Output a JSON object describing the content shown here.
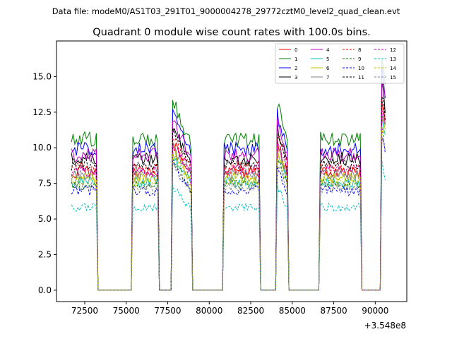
{
  "figure_header": "Data file: modeM0/AS1T03_291T01_9000004278_29772cztM0_level2_quad_clean.evt",
  "chart_data": {
    "type": "line",
    "title": "Quadrant 0 module wise count rates with 100.0s bins.",
    "xlabel": "",
    "ylabel": "",
    "x_offset_label": "+3.548e8",
    "xlim": [
      70800,
      91900
    ],
    "ylim": [
      -0.8,
      17.5
    ],
    "xticks": [
      72500,
      75000,
      77500,
      80000,
      82500,
      85000,
      87500,
      90000
    ],
    "xtick_labels": [
      "72500",
      "75000",
      "77500",
      "80000",
      "82500",
      "85000",
      "87500",
      "90000"
    ],
    "yticks": [
      0.0,
      2.5,
      5.0,
      7.5,
      10.0,
      12.5,
      15.0
    ],
    "ytick_labels": [
      "0.0",
      "2.5",
      "5.0",
      "7.5",
      "10.0",
      "12.5",
      "15.0"
    ],
    "grid": false,
    "legend_position": "top-right",
    "legend_columns": 4,
    "x_start": 71700,
    "x_step": 100,
    "segments": [
      {
        "from": 71700,
        "to": 73200,
        "kind": "flat"
      },
      {
        "from": 75400,
        "to": 76900,
        "kind": "flat"
      },
      {
        "from": 77800,
        "to": 78900,
        "kind": "decay"
      },
      {
        "from": 80900,
        "to": 83000,
        "kind": "flat"
      },
      {
        "from": 84100,
        "to": 84700,
        "kind": "decay"
      },
      {
        "from": 86700,
        "to": 89100,
        "kind": "flat"
      },
      {
        "from": 90400,
        "to": 90600,
        "kind": "spike"
      }
    ],
    "series": [
      {
        "name": "0",
        "color": "#ff0000",
        "dash": "solid",
        "level": 8.3
      },
      {
        "name": "1",
        "color": "#008000",
        "dash": "solid",
        "level": 10.6
      },
      {
        "name": "2",
        "color": "#0000ff",
        "dash": "solid",
        "level": 9.9
      },
      {
        "name": "3",
        "color": "#000000",
        "dash": "solid",
        "level": 9.2
      },
      {
        "name": "4",
        "color": "#bf00bf",
        "dash": "solid",
        "level": 9.5
      },
      {
        "name": "5",
        "color": "#00bfbf",
        "dash": "solid",
        "level": 7.6
      },
      {
        "name": "6",
        "color": "#bfbf00",
        "dash": "solid",
        "level": 7.9
      },
      {
        "name": "7",
        "color": "#808080",
        "dash": "solid",
        "level": 8.1
      },
      {
        "name": "8",
        "color": "#ff0000",
        "dash": "dashed",
        "level": 8.6
      },
      {
        "name": "9",
        "color": "#008000",
        "dash": "dashed",
        "level": 7.4
      },
      {
        "name": "10",
        "color": "#0000ff",
        "dash": "dashed",
        "level": 7.0
      },
      {
        "name": "11",
        "color": "#000000",
        "dash": "dashed",
        "level": 8.8
      },
      {
        "name": "12",
        "color": "#bf00bf",
        "dash": "dashed",
        "level": 8.4
      },
      {
        "name": "13",
        "color": "#00bfbf",
        "dash": "dashed",
        "level": 5.8
      },
      {
        "name": "14",
        "color": "#bfbf00",
        "dash": "dashed",
        "level": 7.7
      },
      {
        "name": "15",
        "color": "#808080",
        "dash": "dashed",
        "level": 7.2
      }
    ]
  }
}
